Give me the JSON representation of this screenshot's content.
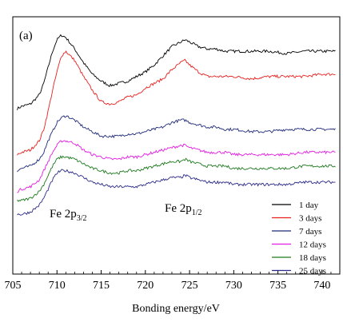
{
  "chart_data": {
    "type": "line",
    "panel_label": "(a)",
    "xlabel": "Bonding energy/eV",
    "ylabel": "",
    "xlim": [
      705,
      742
    ],
    "x_ticks": [
      705,
      710,
      715,
      720,
      725,
      730,
      735,
      740
    ],
    "y_ticks_shown": false,
    "annotations": [
      {
        "base": "Fe 2p",
        "sub": "3/2",
        "x": 710.8
      },
      {
        "base": "Fe 2p",
        "sub": "1/2",
        "x": 724.5
      }
    ],
    "legend": {
      "position": "bottom-right"
    },
    "series": [
      {
        "name": "1 day",
        "color": "#000000",
        "points": [
          [
            705.5,
            0.72
          ],
          [
            706,
            0.73
          ],
          [
            707,
            0.74
          ],
          [
            708,
            0.78
          ],
          [
            708.5,
            0.83
          ],
          [
            709,
            0.9
          ],
          [
            709.5,
            0.97
          ],
          [
            710,
            1.02
          ],
          [
            710.5,
            1.04
          ],
          [
            711,
            1.03
          ],
          [
            712,
            0.98
          ],
          [
            713,
            0.92
          ],
          [
            714,
            0.87
          ],
          [
            715,
            0.84
          ],
          [
            716,
            0.82
          ],
          [
            717,
            0.83
          ],
          [
            718,
            0.84
          ],
          [
            719,
            0.86
          ],
          [
            720,
            0.88
          ],
          [
            721,
            0.91
          ],
          [
            722,
            0.95
          ],
          [
            723,
            0.99
          ],
          [
            724,
            1.01
          ],
          [
            724.5,
            1.02
          ],
          [
            725,
            1.01
          ],
          [
            726,
            0.99
          ],
          [
            727,
            0.98
          ],
          [
            728,
            0.98
          ],
          [
            729,
            0.97
          ],
          [
            730,
            0.97
          ],
          [
            732,
            0.97
          ],
          [
            734,
            0.97
          ],
          [
            736,
            0.96
          ],
          [
            738,
            0.97
          ],
          [
            740,
            0.97
          ],
          [
            741.5,
            0.97
          ]
        ]
      },
      {
        "name": "3 days",
        "color": "#e8201f",
        "points": [
          [
            705.5,
            0.52
          ],
          [
            706,
            0.53
          ],
          [
            707,
            0.54
          ],
          [
            708,
            0.58
          ],
          [
            708.5,
            0.63
          ],
          [
            709,
            0.71
          ],
          [
            709.5,
            0.8
          ],
          [
            710,
            0.88
          ],
          [
            710.5,
            0.95
          ],
          [
            711,
            0.97
          ],
          [
            712,
            0.93
          ],
          [
            713,
            0.86
          ],
          [
            714,
            0.8
          ],
          [
            715,
            0.75
          ],
          [
            716,
            0.74
          ],
          [
            717,
            0.75
          ],
          [
            718,
            0.77
          ],
          [
            719,
            0.78
          ],
          [
            720,
            0.81
          ],
          [
            721,
            0.83
          ],
          [
            722,
            0.85
          ],
          [
            723,
            0.89
          ],
          [
            724,
            0.92
          ],
          [
            724.5,
            0.93
          ],
          [
            725,
            0.91
          ],
          [
            726,
            0.88
          ],
          [
            727,
            0.86
          ],
          [
            728,
            0.86
          ],
          [
            729,
            0.86
          ],
          [
            730,
            0.86
          ],
          [
            732,
            0.85
          ],
          [
            734,
            0.86
          ],
          [
            736,
            0.86
          ],
          [
            738,
            0.86
          ],
          [
            740,
            0.87
          ],
          [
            741.5,
            0.87
          ]
        ]
      },
      {
        "name": "7 days",
        "color": "#1f2a7a",
        "points": [
          [
            705.5,
            0.45
          ],
          [
            706,
            0.46
          ],
          [
            707,
            0.47
          ],
          [
            708,
            0.5
          ],
          [
            708.5,
            0.53
          ],
          [
            709,
            0.58
          ],
          [
            709.5,
            0.62
          ],
          [
            710,
            0.66
          ],
          [
            710.5,
            0.68
          ],
          [
            711,
            0.69
          ],
          [
            712,
            0.67
          ],
          [
            713,
            0.64
          ],
          [
            714,
            0.62
          ],
          [
            715,
            0.6
          ],
          [
            716,
            0.6
          ],
          [
            717,
            0.6
          ],
          [
            718,
            0.61
          ],
          [
            719,
            0.61
          ],
          [
            720,
            0.62
          ],
          [
            721,
            0.63
          ],
          [
            722,
            0.64
          ],
          [
            723,
            0.66
          ],
          [
            724,
            0.67
          ],
          [
            724.5,
            0.67
          ],
          [
            725,
            0.66
          ],
          [
            726,
            0.65
          ],
          [
            727,
            0.64
          ],
          [
            728,
            0.64
          ],
          [
            729,
            0.63
          ],
          [
            730,
            0.63
          ],
          [
            732,
            0.62
          ],
          [
            734,
            0.62
          ],
          [
            736,
            0.63
          ],
          [
            738,
            0.63
          ],
          [
            740,
            0.63
          ],
          [
            741.5,
            0.63
          ]
        ]
      },
      {
        "name": "12 days",
        "color": "#e21ee0",
        "points": [
          [
            705.5,
            0.36
          ],
          [
            706,
            0.37
          ],
          [
            707,
            0.38
          ],
          [
            708,
            0.41
          ],
          [
            708.5,
            0.45
          ],
          [
            709,
            0.49
          ],
          [
            709.5,
            0.53
          ],
          [
            710,
            0.56
          ],
          [
            710.5,
            0.58
          ],
          [
            711,
            0.58
          ],
          [
            712,
            0.57
          ],
          [
            713,
            0.54
          ],
          [
            714,
            0.52
          ],
          [
            715,
            0.51
          ],
          [
            716,
            0.5
          ],
          [
            717,
            0.5
          ],
          [
            718,
            0.51
          ],
          [
            719,
            0.51
          ],
          [
            720,
            0.52
          ],
          [
            721,
            0.53
          ],
          [
            722,
            0.54
          ],
          [
            723,
            0.55
          ],
          [
            724,
            0.56
          ],
          [
            724.5,
            0.56
          ],
          [
            725,
            0.55
          ],
          [
            726,
            0.54
          ],
          [
            727,
            0.53
          ],
          [
            728,
            0.53
          ],
          [
            729,
            0.53
          ],
          [
            730,
            0.52
          ],
          [
            732,
            0.52
          ],
          [
            734,
            0.52
          ],
          [
            736,
            0.52
          ],
          [
            738,
            0.53
          ],
          [
            740,
            0.53
          ],
          [
            741.5,
            0.53
          ]
        ]
      },
      {
        "name": "18 days",
        "color": "#1d7a1d",
        "points": [
          [
            705.5,
            0.32
          ],
          [
            706,
            0.32
          ],
          [
            707,
            0.33
          ],
          [
            708,
            0.36
          ],
          [
            708.5,
            0.39
          ],
          [
            709,
            0.43
          ],
          [
            709.5,
            0.47
          ],
          [
            710,
            0.5
          ],
          [
            710.5,
            0.51
          ],
          [
            711,
            0.51
          ],
          [
            712,
            0.5
          ],
          [
            713,
            0.48
          ],
          [
            714,
            0.46
          ],
          [
            715,
            0.45
          ],
          [
            716,
            0.44
          ],
          [
            717,
            0.44
          ],
          [
            718,
            0.45
          ],
          [
            719,
            0.45
          ],
          [
            720,
            0.46
          ],
          [
            721,
            0.47
          ],
          [
            722,
            0.48
          ],
          [
            723,
            0.49
          ],
          [
            724,
            0.49
          ],
          [
            724.5,
            0.5
          ],
          [
            725,
            0.49
          ],
          [
            726,
            0.48
          ],
          [
            727,
            0.47
          ],
          [
            728,
            0.47
          ],
          [
            729,
            0.47
          ],
          [
            730,
            0.46
          ],
          [
            732,
            0.46
          ],
          [
            734,
            0.46
          ],
          [
            736,
            0.46
          ],
          [
            738,
            0.47
          ],
          [
            740,
            0.47
          ],
          [
            741.5,
            0.47
          ]
        ]
      },
      {
        "name": "25 days",
        "color": "#2b2a8a",
        "points": [
          [
            705.5,
            0.26
          ],
          [
            706,
            0.26
          ],
          [
            707,
            0.27
          ],
          [
            708,
            0.3
          ],
          [
            708.5,
            0.33
          ],
          [
            709,
            0.37
          ],
          [
            709.5,
            0.41
          ],
          [
            710,
            0.44
          ],
          [
            710.5,
            0.45
          ],
          [
            711,
            0.45
          ],
          [
            712,
            0.44
          ],
          [
            713,
            0.42
          ],
          [
            714,
            0.4
          ],
          [
            715,
            0.39
          ],
          [
            716,
            0.38
          ],
          [
            717,
            0.38
          ],
          [
            718,
            0.38
          ],
          [
            719,
            0.38
          ],
          [
            720,
            0.39
          ],
          [
            721,
            0.4
          ],
          [
            722,
            0.41
          ],
          [
            723,
            0.42
          ],
          [
            724,
            0.42
          ],
          [
            724.5,
            0.43
          ],
          [
            725,
            0.42
          ],
          [
            726,
            0.41
          ],
          [
            727,
            0.4
          ],
          [
            728,
            0.4
          ],
          [
            729,
            0.4
          ],
          [
            730,
            0.39
          ],
          [
            732,
            0.39
          ],
          [
            734,
            0.39
          ],
          [
            736,
            0.39
          ],
          [
            738,
            0.4
          ],
          [
            740,
            0.4
          ],
          [
            741.5,
            0.4
          ]
        ]
      }
    ]
  }
}
